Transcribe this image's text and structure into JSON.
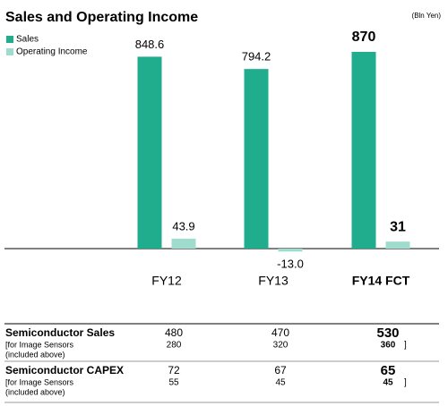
{
  "chart_data": {
    "type": "bar",
    "title": "Sales and Operating Income",
    "unit": "(Bln Yen)",
    "categories": [
      "FY12",
      "FY13",
      "FY14 FCT"
    ],
    "series": [
      {
        "name": "Sales",
        "color": "#1fad8d",
        "values": [
          848.6,
          794.2,
          870
        ]
      },
      {
        "name": "Operating Income",
        "color": "#9fdccd",
        "values": [
          43.9,
          -13.0,
          31
        ],
        "value_labels": [
          "43.9",
          "-13.0",
          "31"
        ]
      }
    ]
  },
  "table": {
    "rows": [
      {
        "label": "Semiconductor Sales",
        "values": [
          "480",
          "470",
          "530"
        ]
      },
      {
        "label": [
          "[for Image Sensors",
          "(included above)"
        ],
        "values": [
          "280",
          "320",
          "360"
        ],
        "suffix": "]"
      },
      {
        "label": "Semiconductor CAPEX",
        "values": [
          "72",
          "67",
          "65"
        ]
      },
      {
        "label": [
          "[for Image Sensors",
          "(included above)"
        ],
        "values": [
          "55",
          "45",
          "45"
        ],
        "suffix": "]"
      }
    ]
  }
}
